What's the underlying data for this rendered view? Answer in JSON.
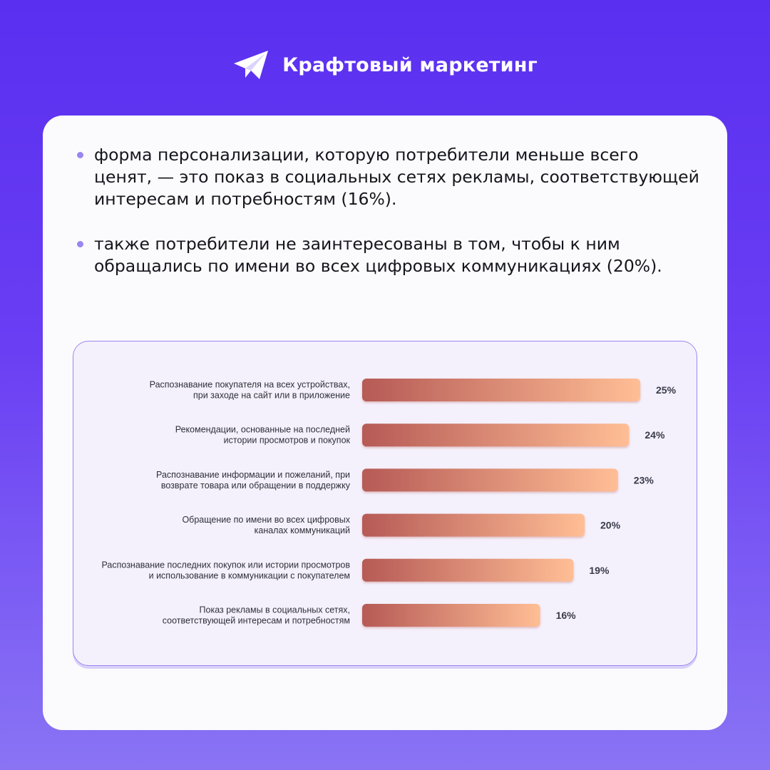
{
  "header": {
    "logo_icon": "paper-plane-icon",
    "brand": "Крафтовый маркетинг"
  },
  "bullets": [
    "форма персонализации, которую потребители меньше всего ценят, — это показ в социальных сетях рекламы, соответствующей интересам и потребностям (16%).",
    "также потребители не заинтересованы в том, чтобы к ним обращались по имени во всех цифровых коммуникациях (20%)."
  ],
  "colors": {
    "background": "#5a2ff0",
    "card": "#fbfbfd",
    "chart_panel": "#f4f1fc",
    "chart_border": "#9d85f2",
    "bullet_dot": "#9b85f0",
    "bar_start": "#b65a56",
    "bar_end": "#ffbe95"
  },
  "chart_data": {
    "type": "bar",
    "orientation": "horizontal",
    "categories": [
      [
        "Распознавание покупателя на всех устройствах,",
        "при заходе на сайт или в приложение"
      ],
      [
        "Рекомендации, основанные на последней",
        "истории просмотров и покупок"
      ],
      [
        "Распознавание информации и пожеланий, при",
        "возврате товара или обращении в поддержку"
      ],
      [
        "Обращение по имени во всех цифровых",
        "каналах коммуникаций"
      ],
      [
        "Распознавание последних покупок или истории просмотров",
        "и использование в коммуникации с покупателем"
      ],
      [
        "Показ рекламы в социальных сетях,",
        "соответствующей интересам и потребностям"
      ]
    ],
    "values": [
      25,
      24,
      23,
      20,
      19,
      16
    ],
    "value_labels": [
      "25%",
      "24%",
      "23%",
      "20%",
      "19%",
      "16%"
    ],
    "unit": "%",
    "title": "",
    "xlabel": "",
    "ylabel": "",
    "grid": false,
    "legend": "none"
  }
}
